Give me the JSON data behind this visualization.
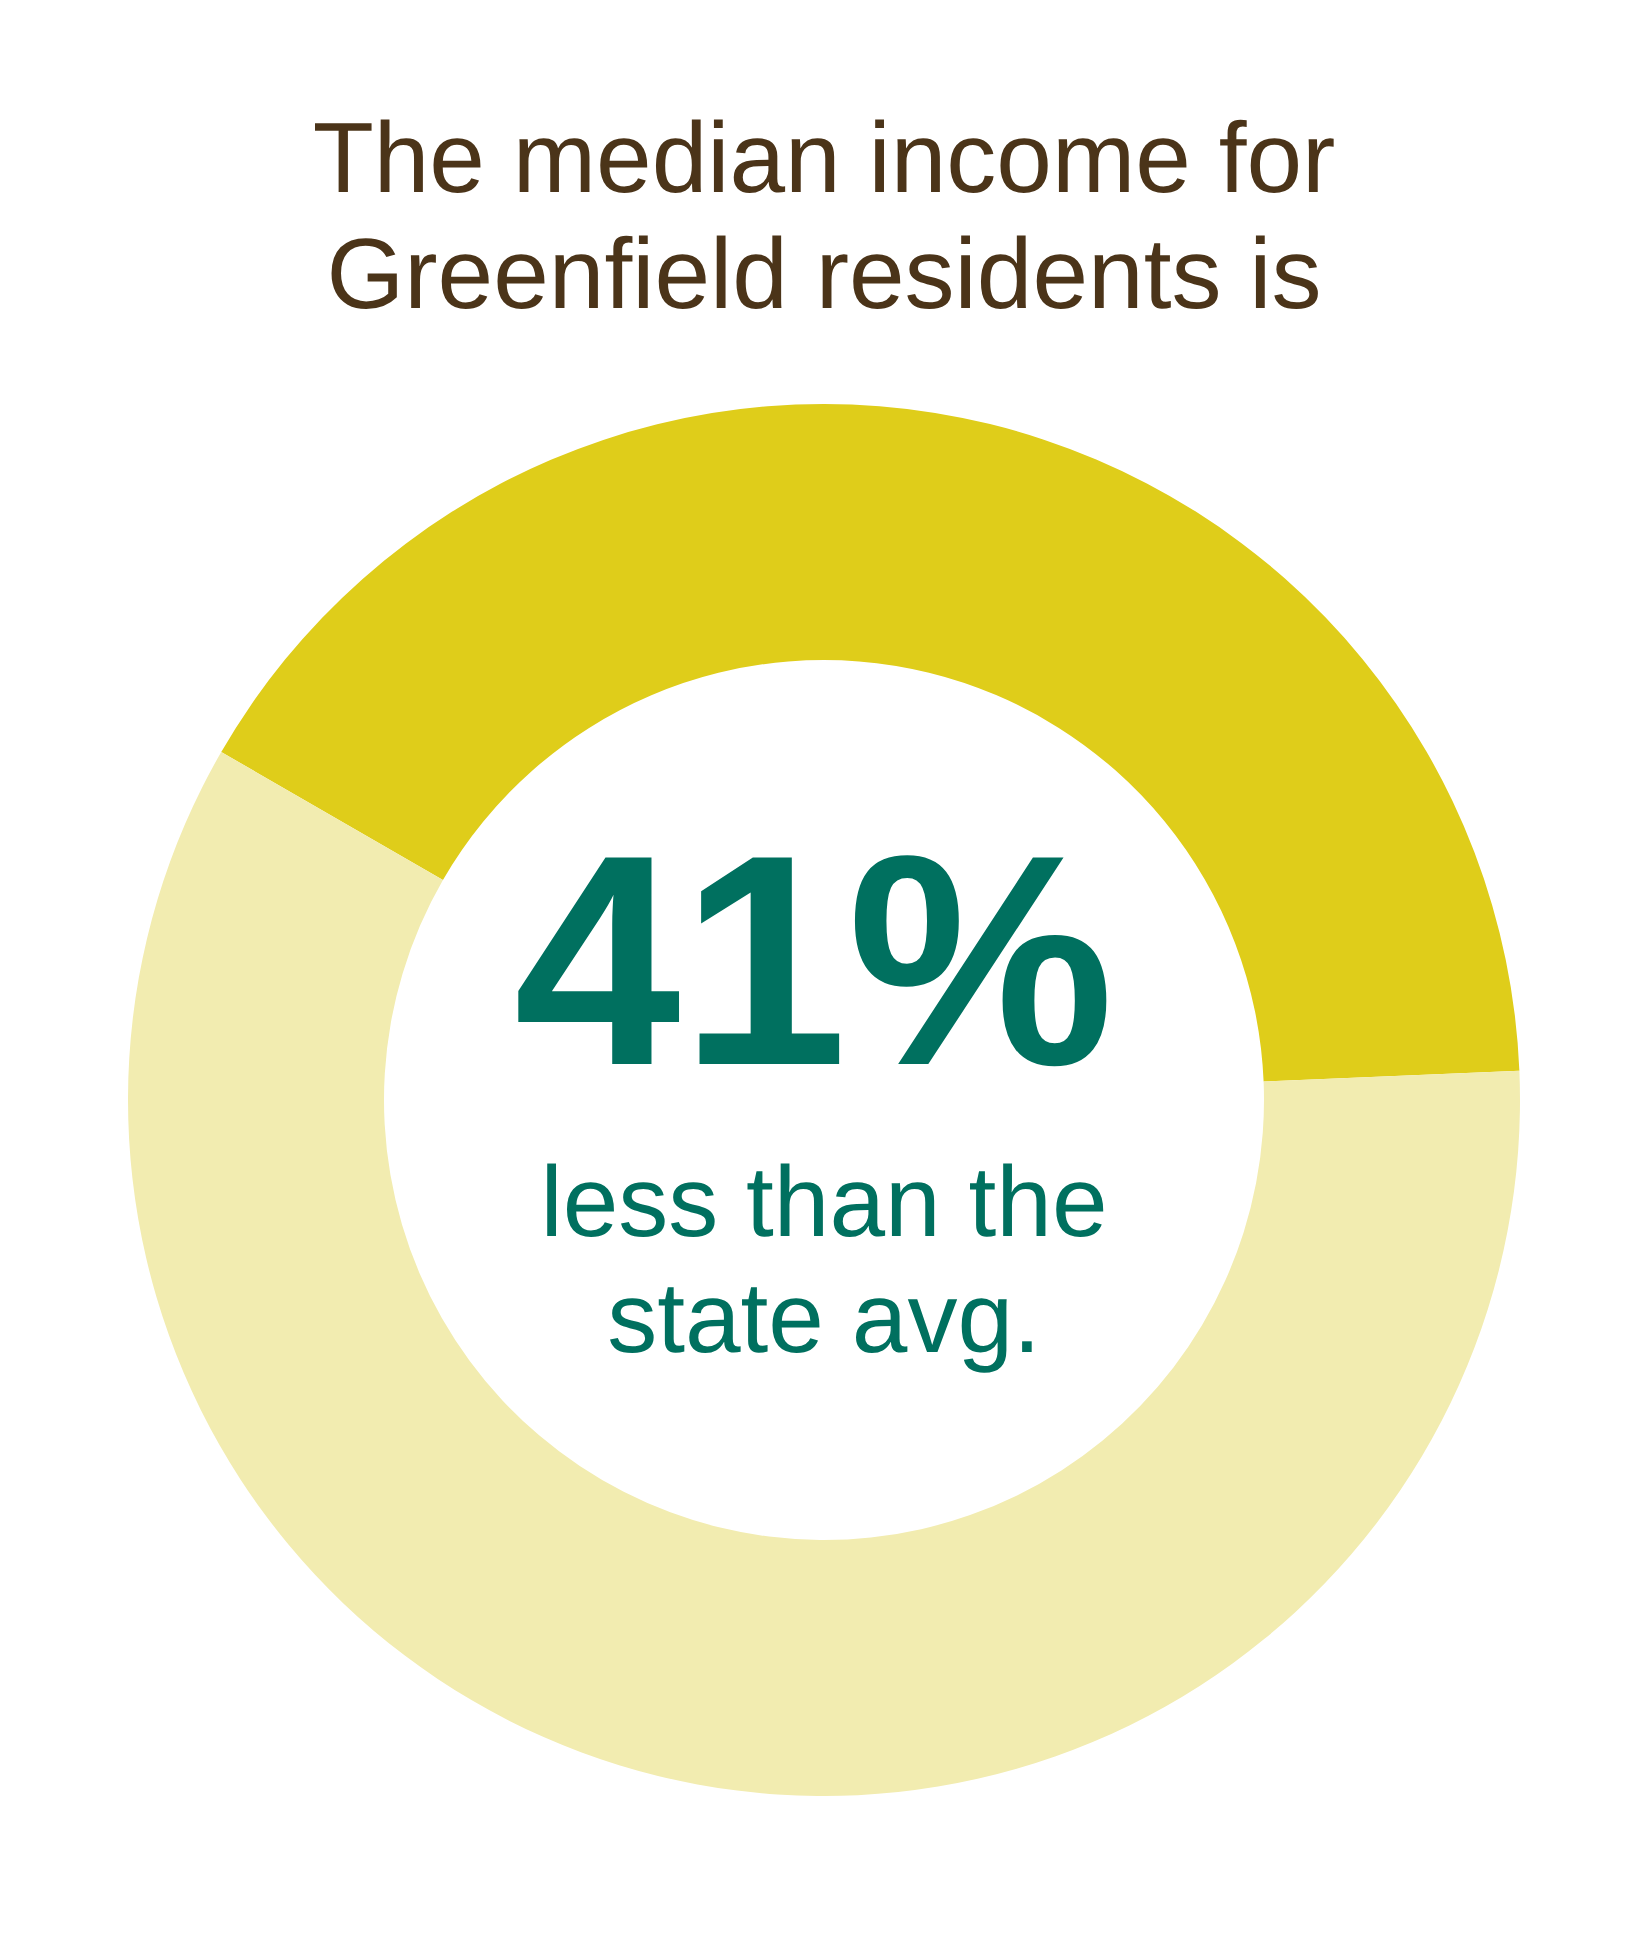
{
  "chart_data": {
    "type": "donut",
    "title": "The median income for Greenfield residents is",
    "categories": [
      null,
      null
    ],
    "values": [
      41,
      59
    ],
    "colors": [
      "#dfcd1a",
      "#f2ecb0"
    ],
    "value_labels": [
      "41%",
      null
    ],
    "annotations": [
      "less than the state avg."
    ]
  }
}
